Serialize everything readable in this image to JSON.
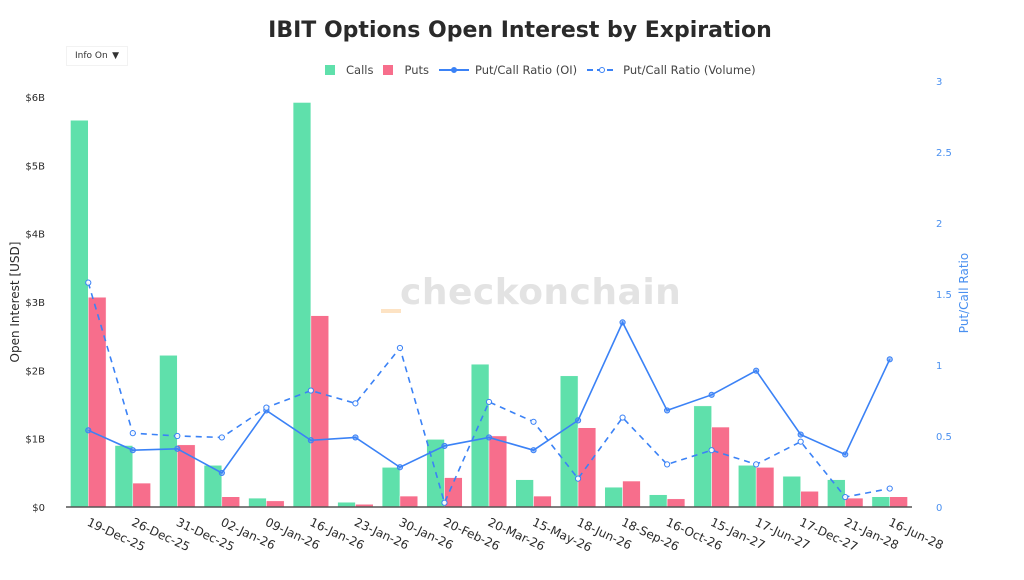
{
  "header": {
    "title": "IBIT Options Open Interest by Expiration",
    "info_button_label": "Info On",
    "info_button_icon": "caret-down-icon"
  },
  "legend": {
    "calls": "Calls",
    "puts": "Puts",
    "oi_ratio": "Put/Call Ratio (OI)",
    "volume_ratio": "Put/Call Ratio (Volume)"
  },
  "watermark": "checkonchain",
  "colors": {
    "calls": "#5fe0ab",
    "puts": "#f76e8c",
    "ratio": "#3b82f6",
    "right_axis": "#4a90f0"
  },
  "chart_data": {
    "type": "bar",
    "title": "IBIT Options Open Interest by Expiration",
    "xlabel": "",
    "ylabel": "Open Interest [USD]",
    "y2label": "Put/Call Ratio",
    "ylim": [
      0,
      6
    ],
    "y2lim": [
      0,
      3
    ],
    "yticks": [
      "$0",
      "$1B",
      "$2B",
      "$3B",
      "$4B",
      "$5B",
      "$6B"
    ],
    "y2ticks": [
      "0",
      "0.5",
      "1",
      "1.5",
      "2",
      "2.5",
      "3"
    ],
    "grid": false,
    "legend_position": "top",
    "categories": [
      "19-Dec-25",
      "26-Dec-25",
      "31-Dec-25",
      "02-Jan-26",
      "09-Jan-26",
      "16-Jan-26",
      "23-Jan-26",
      "30-Jan-26",
      "20-Feb-26",
      "20-Mar-26",
      "15-May-26",
      "18-Jun-26",
      "18-Sep-26",
      "16-Oct-26",
      "15-Jan-27",
      "17-Jun-27",
      "17-Dec-27",
      "21-Jan-28",
      "16-Jun-28"
    ],
    "series": [
      {
        "name": "Calls",
        "type": "bar",
        "axis": "left",
        "unit": "USD billions",
        "values": [
          5.66,
          0.9,
          2.22,
          0.61,
          0.13,
          5.92,
          0.07,
          0.58,
          0.99,
          2.09,
          0.4,
          1.92,
          0.29,
          0.18,
          1.48,
          0.61,
          0.45,
          0.4,
          0.15
        ]
      },
      {
        "name": "Puts",
        "type": "bar",
        "axis": "left",
        "unit": "USD billions",
        "values": [
          3.07,
          0.35,
          0.91,
          0.15,
          0.09,
          2.8,
          0.04,
          0.16,
          0.43,
          1.04,
          0.16,
          1.16,
          0.38,
          0.12,
          1.17,
          0.58,
          0.23,
          0.13,
          0.15
        ]
      },
      {
        "name": "Put/Call Ratio (OI)",
        "type": "line",
        "axis": "right",
        "style": "solid",
        "values": [
          0.54,
          0.4,
          0.41,
          0.24,
          0.68,
          0.47,
          0.49,
          0.28,
          0.43,
          0.49,
          0.4,
          0.61,
          1.3,
          0.68,
          0.79,
          0.96,
          0.51,
          0.37,
          1.04
        ]
      },
      {
        "name": "Put/Call Ratio (Volume)",
        "type": "line",
        "axis": "right",
        "style": "dashed",
        "values": [
          1.58,
          0.52,
          0.5,
          0.49,
          0.7,
          0.82,
          0.73,
          1.12,
          0.03,
          0.74,
          0.6,
          0.2,
          0.63,
          0.3,
          0.4,
          0.3,
          0.46,
          0.07,
          0.13
        ]
      }
    ]
  }
}
